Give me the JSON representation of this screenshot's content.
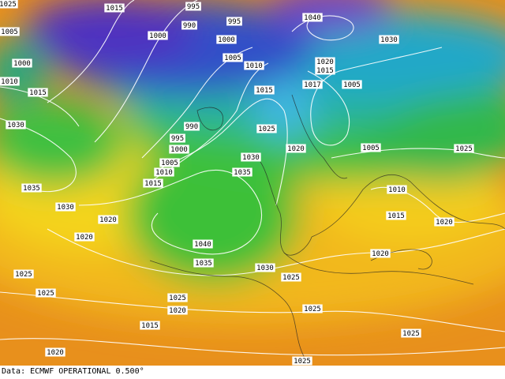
{
  "isobar_labels": [
    "1025",
    "1015",
    "995",
    "990",
    "995",
    "1040",
    "1005",
    "1000",
    "1000",
    "1005",
    "1000",
    "1010",
    "1020",
    "1015",
    "1010",
    "1015",
    "1015",
    "1017",
    "1005",
    "1030",
    "990",
    "1025",
    "995",
    "1000",
    "1020",
    "1005",
    "1025",
    "1030",
    "1005",
    "1010",
    "1035",
    "1015",
    "1035",
    "1010",
    "1030",
    "1015",
    "1020",
    "1020",
    "1020",
    "1040",
    "1020",
    "1035",
    "1030",
    "1025",
    "1025",
    "1025",
    "1025",
    "1020",
    "1025",
    "1015",
    "1025",
    "1020",
    "1025",
    "1030"
  ],
  "footer": "Data: ECMWF OPERATIONAL 0.500°"
}
